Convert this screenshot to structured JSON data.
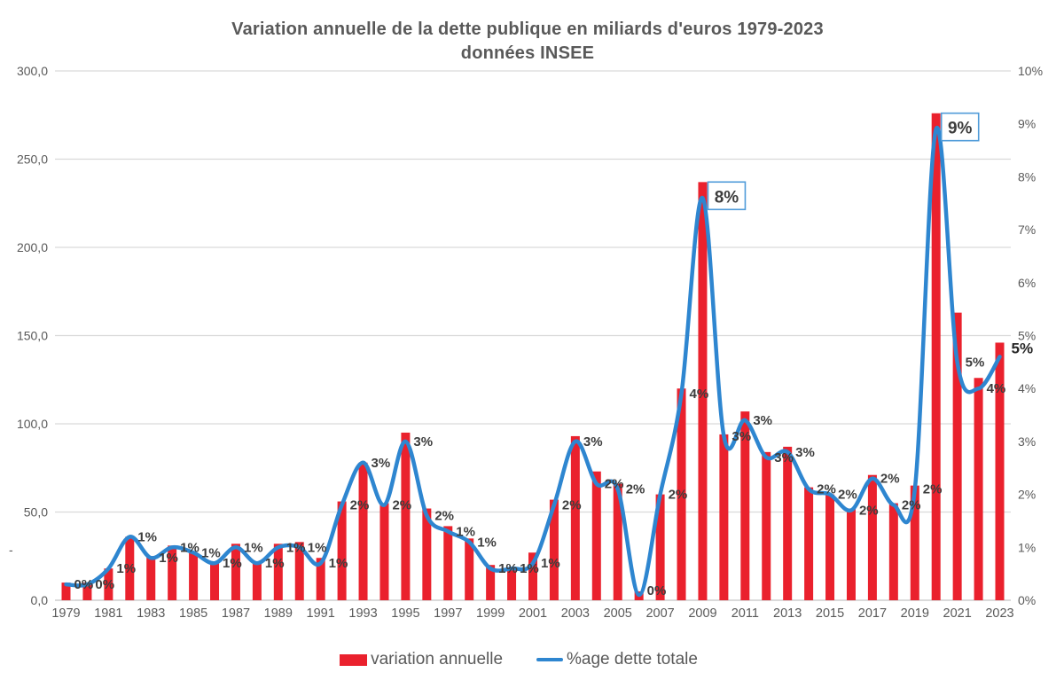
{
  "title": {
    "line1": "Variation annuelle de la dette publique en miliards d'euros 1979-2023",
    "line2": "données INSEE"
  },
  "colors": {
    "bar": "#ea212d",
    "line": "#2e86d0",
    "grid": "#d9d9d9",
    "axis_line": "#c3c3c3",
    "axis_text": "#595959",
    "data_label": "#3d3d3d",
    "annotation_border": "#4f9bd9",
    "annotation_fill": "#ffffff"
  },
  "misc": {
    "stray_dash": "-"
  },
  "chart_data": {
    "type": "bar",
    "subtype": "combo bar + smooth line, dual axes",
    "title": "Variation annuelle de la dette publique en miliards d'euros 1979-2023",
    "subtitle": "données INSEE",
    "categories": [
      1979,
      1980,
      1981,
      1982,
      1983,
      1984,
      1985,
      1986,
      1987,
      1988,
      1989,
      1990,
      1991,
      1992,
      1993,
      1994,
      1995,
      1996,
      1997,
      1998,
      1999,
      2000,
      2001,
      2002,
      2003,
      2004,
      2005,
      2006,
      2007,
      2008,
      2009,
      2010,
      2011,
      2012,
      2013,
      2014,
      2015,
      2016,
      2017,
      2018,
      2019,
      2020,
      2021,
      2022,
      2023
    ],
    "series": [
      {
        "name": "variation annuelle",
        "type": "bar",
        "axis": "left",
        "unit": "milliards d'euros",
        "color": "#ea212d",
        "values": [
          10,
          10,
          18,
          36,
          25,
          31,
          27,
          22,
          32,
          21,
          32,
          33,
          24,
          56,
          78,
          55,
          95,
          52,
          42,
          35,
          20,
          18,
          27,
          57,
          93,
          73,
          66,
          5,
          60,
          120,
          237,
          94,
          107,
          84,
          87,
          64,
          60,
          52,
          71,
          55,
          65,
          276,
          163,
          126,
          146
        ]
      },
      {
        "name": "%age dette totale",
        "type": "line",
        "axis": "right",
        "unit": "%",
        "color": "#2e86d0",
        "values": [
          0.3,
          0.3,
          0.6,
          1.2,
          0.8,
          1.0,
          0.9,
          0.7,
          1.0,
          0.7,
          1.0,
          1.0,
          0.7,
          1.8,
          2.6,
          1.8,
          3.0,
          1.6,
          1.3,
          1.1,
          0.6,
          0.6,
          0.7,
          1.8,
          3.0,
          2.2,
          2.1,
          0.1,
          2.0,
          3.9,
          7.6,
          3.1,
          3.4,
          2.7,
          2.8,
          2.1,
          2.0,
          1.7,
          2.3,
          1.8,
          2.1,
          8.9,
          4.5,
          4.0,
          4.6
        ],
        "point_labels": [
          "0%",
          "0%",
          "1%",
          "1%",
          "1%",
          "1%",
          "1%",
          "1%",
          "1%",
          "1%",
          "1%",
          "1%",
          "1%",
          "2%",
          "3%",
          "2%",
          "3%",
          "2%",
          "1%",
          "1%",
          "1%",
          "1%",
          "1%",
          "2%",
          "3%",
          "2%",
          "2%",
          "0%",
          "2%",
          "4%",
          "8%",
          "3%",
          "3%",
          "3%",
          "3%",
          "2%",
          "2%",
          "2%",
          "2%",
          "2%",
          "2%",
          "9%",
          "5%",
          "4%",
          "5%"
        ]
      }
    ],
    "annotations": [
      {
        "year": 2009,
        "text": "8%",
        "style": "boxed"
      },
      {
        "year": 2020,
        "text": "9%",
        "style": "boxed"
      },
      {
        "year": 2023,
        "text": "5%",
        "style": "bold"
      }
    ],
    "left_axis": {
      "ticks": [
        "300,0",
        "250,0",
        "200,0",
        "150,0",
        "100,0",
        "50,0",
        "0,0"
      ],
      "range": [
        0,
        300
      ]
    },
    "right_axis": {
      "ticks": [
        "10%",
        "9%",
        "8%",
        "7%",
        "6%",
        "5%",
        "4%",
        "3%",
        "2%",
        "1%",
        "0%"
      ],
      "range": [
        0,
        10
      ]
    },
    "x_tick_labels": [
      "1979",
      "1981",
      "1983",
      "1985",
      "1987",
      "1989",
      "1991",
      "1993",
      "1995",
      "1997",
      "1999",
      "2001",
      "2003",
      "2005",
      "2007",
      "2009",
      "2011",
      "2013",
      "2015",
      "2017",
      "2019",
      "2021",
      "2023"
    ],
    "grid": "horizontal only",
    "legend_position": "bottom"
  }
}
